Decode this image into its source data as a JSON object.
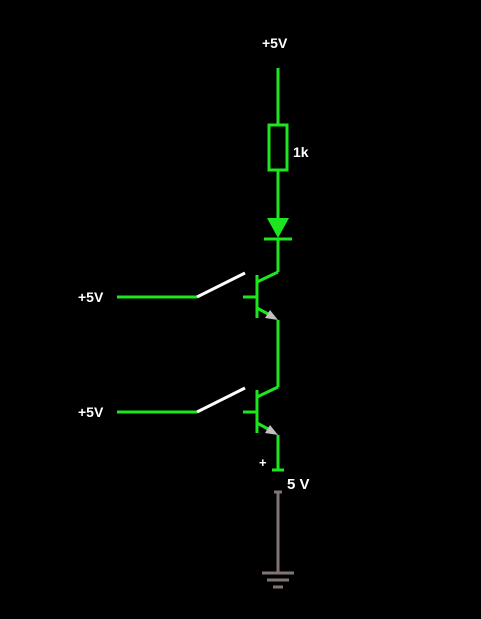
{
  "labels": {
    "supply_top": "+5V",
    "resistor": "1k",
    "input_a": "+5V",
    "input_b": "+5V",
    "source_plus": "+",
    "source_value": "5 V"
  },
  "colors": {
    "background": "#000000",
    "wire_active": "#1ee61e",
    "wire_ground": "#7f7373",
    "switch": "#ffffff",
    "arrow": "#c0c0c0",
    "text": "#ffffff"
  }
}
